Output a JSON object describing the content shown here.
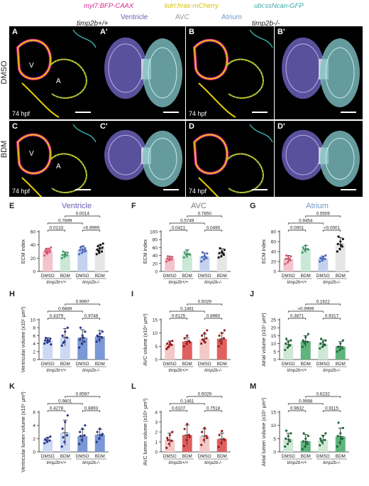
{
  "header": {
    "markers": [
      {
        "text": "myl7:BFP-CAAX",
        "color": "#d6278f"
      },
      {
        "text": "kdrl:hras-mCherry",
        "color": "#d8c000"
      },
      {
        "text": "ubi:ssNcan-GFP",
        "color": "#3aa6a6"
      }
    ],
    "regions": [
      {
        "text": "Ventricle",
        "color": "#6c5fb5"
      },
      {
        "text": "AVC",
        "color": "#9a9a9a"
      },
      {
        "text": "Atrium",
        "color": "#6f9bc9"
      }
    ],
    "genotypes": [
      "timp2b+/+",
      "timp2b-/-"
    ],
    "row_labels": [
      "DMSO",
      "BDM"
    ]
  },
  "image_panels": [
    {
      "letter": "A",
      "type": "confocal",
      "stage": "74 hpf",
      "labels": [
        "V",
        "A"
      ]
    },
    {
      "letter": "A'",
      "type": "render"
    },
    {
      "letter": "B",
      "type": "confocal",
      "stage": "74 hpf",
      "labels": []
    },
    {
      "letter": "B'",
      "type": "render"
    },
    {
      "letter": "C",
      "type": "confocal",
      "stage": "74 hpf",
      "labels": [
        "V",
        "A"
      ]
    },
    {
      "letter": "C'",
      "type": "render"
    },
    {
      "letter": "D",
      "type": "confocal",
      "stage": "74 hpf",
      "labels": []
    },
    {
      "letter": "D'",
      "type": "render"
    }
  ],
  "chart_data": [
    {
      "letter": "E",
      "type": "scatter-bar",
      "title": "Ventricle",
      "title_color": "#6c5fb5",
      "ylabel": "ECM index",
      "ylim": [
        0,
        60
      ],
      "yticks": [
        0,
        20,
        40,
        60
      ],
      "categories": [
        "DMSO",
        "BDM",
        "DMSO",
        "BDM"
      ],
      "groups": [
        "timp2b+/+",
        "timp2b-/-"
      ],
      "bar_colors": [
        "#f3c4ce",
        "#c9e8d6",
        "#c4d2ee",
        "#e6e6e6"
      ],
      "dot_colors": [
        "#e05a78",
        "#3fa36a",
        "#4b6bc4",
        "#111111"
      ],
      "means": [
        30,
        25,
        33,
        34
      ],
      "sd": [
        5,
        4,
        5,
        6
      ],
      "points": [
        [
          24,
          27,
          29,
          30,
          31,
          32,
          33,
          34,
          36,
          28
        ],
        [
          20,
          22,
          24,
          25,
          27,
          28,
          30
        ],
        [
          26,
          28,
          30,
          32,
          33,
          35,
          36,
          38,
          31
        ],
        [
          26,
          28,
          30,
          33,
          35,
          36,
          38,
          40,
          42,
          31
        ]
      ],
      "brackets": [
        {
          "from": 0,
          "to": 1,
          "p": "0.0133"
        },
        {
          "from": 2,
          "to": 3,
          "p": ">0.9999"
        },
        {
          "from": 0,
          "to": 2,
          "p": "0.7899"
        },
        {
          "from": 1,
          "to": 3,
          "p": "0.0014"
        }
      ]
    },
    {
      "letter": "F",
      "type": "scatter-bar",
      "title": "AVC",
      "title_color": "#7a7a7a",
      "ylabel": "ECM index",
      "ylim": [
        0,
        100
      ],
      "yticks": [
        0,
        20,
        40,
        60,
        80,
        100
      ],
      "categories": [
        "DMSO",
        "BDM",
        "DMSO",
        "BDM"
      ],
      "groups": [
        "timp2b+/+",
        "timp2b-/-"
      ],
      "bar_colors": [
        "#f3c4ce",
        "#c9e8d6",
        "#c4d2ee",
        "#e6e6e6"
      ],
      "dot_colors": [
        "#e05a78",
        "#3fa36a",
        "#4b6bc4",
        "#111111"
      ],
      "means": [
        32,
        44,
        37,
        47
      ],
      "sd": [
        6,
        10,
        9,
        10
      ],
      "points": [
        [
          25,
          28,
          30,
          32,
          34,
          36,
          38,
          30
        ],
        [
          35,
          40,
          44,
          48,
          52,
          42
        ],
        [
          25,
          30,
          33,
          36,
          40,
          45,
          48,
          36
        ],
        [
          35,
          38,
          42,
          46,
          50,
          54,
          58,
          46
        ]
      ],
      "brackets": [
        {
          "from": 0,
          "to": 1,
          "p": "0.0421"
        },
        {
          "from": 2,
          "to": 3,
          "p": "0.0490"
        },
        {
          "from": 0,
          "to": 2,
          "p": "0.5749"
        },
        {
          "from": 1,
          "to": 3,
          "p": "0.7850"
        }
      ]
    },
    {
      "letter": "G",
      "type": "scatter-bar",
      "title": "Atrium",
      "title_color": "#6f9bc9",
      "ylabel": "ECM index",
      "ylim": [
        0,
        80
      ],
      "yticks": [
        0,
        20,
        40,
        60,
        80
      ],
      "categories": [
        "DMSO",
        "BDM",
        "DMSO",
        "BDM"
      ],
      "groups": [
        "timp2b+/+",
        "timp2b-/-"
      ],
      "bar_colors": [
        "#f3c4ce",
        "#c9e8d6",
        "#c4d2ee",
        "#e6e6e6"
      ],
      "dot_colors": [
        "#e05a78",
        "#3fa36a",
        "#4b6bc4",
        "#111111"
      ],
      "means": [
        25,
        45,
        26,
        55
      ],
      "sd": [
        7,
        7,
        5,
        13
      ],
      "points": [
        [
          15,
          18,
          22,
          25,
          28,
          30,
          32,
          26
        ],
        [
          38,
          42,
          45,
          48,
          52,
          44
        ],
        [
          20,
          22,
          25,
          27,
          29,
          32,
          26
        ],
        [
          40,
          45,
          50,
          55,
          60,
          65,
          70,
          52
        ]
      ],
      "brackets": [
        {
          "from": 0,
          "to": 1,
          "p": "0.0001"
        },
        {
          "from": 2,
          "to": 3,
          "p": "<0.0001"
        },
        {
          "from": 0,
          "to": 2,
          "p": "0.9454"
        },
        {
          "from": 1,
          "to": 3,
          "p": "0.5509"
        }
      ]
    },
    {
      "letter": "H",
      "type": "scatter-bar",
      "ylabel": "Ventricular volume (x10⁵ µm³)",
      "ylim": [
        0,
        10
      ],
      "yticks": [
        0,
        2,
        4,
        6,
        8,
        10
      ],
      "categories": [
        "DMSO",
        "BDM",
        "DMSO",
        "BDM"
      ],
      "groups": [
        "timp2b+/+",
        "timp2b-/-"
      ],
      "bar_colors": [
        "#ccd8f4",
        "#ccd8f4",
        "#7b98d6",
        "#7b98d6"
      ],
      "dot_colors": [
        "#27348b",
        "#27348b",
        "#27348b",
        "#27348b"
      ],
      "means": [
        4.7,
        5.6,
        5.5,
        5.8
      ],
      "sd": [
        0.8,
        2.2,
        2.0,
        1.5
      ],
      "points": [
        [
          4,
          4.3,
          4.6,
          4.8,
          5,
          5.2,
          5.4,
          4.5,
          3.8
        ],
        [
          3.5,
          4.5,
          5.5,
          6,
          7,
          8,
          4.2
        ],
        [
          3,
          4,
          4.5,
          5,
          6,
          7,
          8,
          5.5
        ],
        [
          4.5,
          5,
          5.5,
          6,
          6.5,
          7,
          5.8
        ]
      ],
      "brackets": [
        {
          "from": 0,
          "to": 1,
          "p": "0.4379"
        },
        {
          "from": 2,
          "to": 3,
          "p": "0.9748"
        },
        {
          "from": 0,
          "to": 2,
          "p": "0.6889"
        },
        {
          "from": 1,
          "to": 3,
          "p": "0.9997"
        }
      ]
    },
    {
      "letter": "I",
      "type": "scatter-bar",
      "ylabel": "AVC volume (x10⁴ µm³)",
      "ylim": [
        0,
        15
      ],
      "yticks": [
        0,
        5,
        10,
        15
      ],
      "categories": [
        "DMSO",
        "BDM",
        "DMSO",
        "BDM"
      ],
      "groups": [
        "timp2b+/+",
        "timp2b-/-"
      ],
      "bar_colors": [
        "#f5c8c8",
        "#e06060",
        "#f5c8c8",
        "#e06060"
      ],
      "dot_colors": [
        "#9b1b1b",
        "#9b1b1b",
        "#9b1b1b",
        "#9b1b1b"
      ],
      "means": [
        5.8,
        6.8,
        7.8,
        7.8
      ],
      "sd": [
        1.2,
        1.5,
        1.8,
        2.2
      ],
      "points": [
        [
          4,
          5,
          5.5,
          6,
          6.5,
          7,
          4.5,
          5.8
        ],
        [
          5,
          6,
          7,
          8,
          9,
          6.5
        ],
        [
          6,
          7,
          8,
          9,
          10,
          11,
          7.5,
          6.5
        ],
        [
          5,
          6,
          8,
          9,
          10,
          11,
          7
        ]
      ],
      "brackets": [
        {
          "from": 0,
          "to": 1,
          "p": "0.6125"
        },
        {
          "from": 2,
          "to": 3,
          "p": "0.8960"
        },
        {
          "from": 0,
          "to": 2,
          "p": "0.1461"
        },
        {
          "from": 1,
          "to": 3,
          "p": "0.5029"
        }
      ]
    },
    {
      "letter": "J",
      "type": "scatter-bar",
      "ylabel": "Atrial volume (x10⁵ µm³)",
      "ylim": [
        0,
        25
      ],
      "yticks": [
        0,
        5,
        10,
        15,
        20,
        25
      ],
      "categories": [
        "DMSO",
        "BDM",
        "DMSO",
        "BDM"
      ],
      "groups": [
        "timp2b+/+",
        "timp2b-/-"
      ],
      "bar_colors": [
        "#cfe8d6",
        "#5fb57d",
        "#cfe8d6",
        "#5fb57d"
      ],
      "dot_colors": [
        "#1e6b3a",
        "#1e6b3a",
        "#1e6b3a",
        "#1e6b3a"
      ],
      "means": [
        9.5,
        11.5,
        9.8,
        8.2
      ],
      "sd": [
        2.5,
        3.5,
        2.5,
        3
      ],
      "points": [
        [
          6,
          7.5,
          9,
          10,
          11,
          12,
          13,
          8.5
        ],
        [
          8,
          10,
          11,
          12,
          14,
          16,
          11
        ],
        [
          7,
          8,
          9,
          10,
          11,
          12,
          13,
          9
        ],
        [
          5,
          6,
          7,
          8,
          10,
          12,
          8
        ]
      ],
      "brackets": [
        {
          "from": 0,
          "to": 1,
          "p": "0.3871"
        },
        {
          "from": 2,
          "to": 3,
          "p": "0.9317"
        },
        {
          "from": 0,
          "to": 2,
          "p": ">0.9999"
        },
        {
          "from": 1,
          "to": 3,
          "p": "0.1622"
        }
      ]
    },
    {
      "letter": "K",
      "type": "scatter-bar",
      "ylabel": "Ventricular lumen volume (x10⁵ µm³)",
      "ylim": [
        0,
        6
      ],
      "yticks": [
        0,
        2,
        4,
        6
      ],
      "categories": [
        "DMSO",
        "BDM",
        "DMSO",
        "BDM"
      ],
      "groups": [
        "timp2b+/+",
        "timp2b-/-"
      ],
      "bar_colors": [
        "#ccd8f4",
        "#ccd8f4",
        "#7b98d6",
        "#7b98d6"
      ],
      "dot_colors": [
        "#27348b",
        "#27348b",
        "#27348b",
        "#27348b"
      ],
      "means": [
        1.8,
        2.9,
        2.4,
        2.6
      ],
      "sd": [
        0.4,
        1.9,
        1.0,
        0.8
      ],
      "points": [
        [
          1.3,
          1.5,
          1.7,
          1.9,
          2.1,
          2.3,
          1.8
        ],
        [
          0.8,
          1.5,
          2.5,
          3.5,
          4.5,
          5.5,
          2.2
        ],
        [
          1.2,
          1.8,
          2.5,
          3,
          3.5,
          4,
          2.4
        ],
        [
          1.5,
          2,
          2.5,
          3,
          3.5,
          2.7
        ]
      ],
      "brackets": [
        {
          "from": 0,
          "to": 1,
          "p": "0.4278"
        },
        {
          "from": 2,
          "to": 3,
          "p": "0.8893"
        },
        {
          "from": 0,
          "to": 2,
          "p": "0.9801"
        },
        {
          "from": 1,
          "to": 3,
          "p": "0.9597"
        }
      ]
    },
    {
      "letter": "L",
      "type": "scatter-bar",
      "ylabel": "AVC lumen volume (x10⁴ µm³)",
      "ylim": [
        0,
        4
      ],
      "yticks": [
        0,
        1,
        2,
        3,
        4
      ],
      "categories": [
        "DMSO",
        "BDM",
        "DMSO",
        "BDM"
      ],
      "groups": [
        "timp2b+/+",
        "timp2b-/-"
      ],
      "bar_colors": [
        "#f5c8c8",
        "#e06060",
        "#f5c8c8",
        "#e06060"
      ],
      "dot_colors": [
        "#9b1b1b",
        "#9b1b1b",
        "#9b1b1b",
        "#9b1b1b"
      ],
      "means": [
        1.2,
        1.7,
        1.6,
        1.3
      ],
      "sd": [
        0.7,
        1.0,
        0.7,
        0.6
      ],
      "points": [
        [
          0.4,
          0.8,
          1.1,
          1.4,
          1.7,
          2.0,
          1.2
        ],
        [
          0.6,
          1.2,
          1.7,
          2.3,
          2.8,
          1.5
        ],
        [
          0.7,
          1.2,
          1.6,
          2.0,
          2.4,
          1.4
        ],
        [
          0.5,
          0.9,
          1.3,
          1.7,
          2.1,
          1.2
        ]
      ],
      "brackets": [
        {
          "from": 0,
          "to": 1,
          "p": "0.6107"
        },
        {
          "from": 2,
          "to": 3,
          "p": "0.7518"
        },
        {
          "from": 0,
          "to": 2,
          "p": "0.1461"
        },
        {
          "from": 1,
          "to": 3,
          "p": "0.5029"
        }
      ]
    },
    {
      "letter": "M",
      "type": "scatter-bar",
      "ylabel": "Atrial lumen volume (x10⁵ µm³)",
      "ylim": [
        0,
        15
      ],
      "yticks": [
        0,
        5,
        10,
        15
      ],
      "categories": [
        "DMSO",
        "BDM",
        "DMSO",
        "BDM"
      ],
      "groups": [
        "timp2b+/+",
        "timp2b-/-"
      ],
      "bar_colors": [
        "#cfe8d6",
        "#5fb57d",
        "#cfe8d6",
        "#5fb57d"
      ],
      "dot_colors": [
        "#1e6b3a",
        "#1e6b3a",
        "#1e6b3a",
        "#1e6b3a"
      ],
      "means": [
        4.8,
        4.0,
        4.5,
        5.8
      ],
      "sd": [
        2.2,
        2.5,
        1.8,
        3.2
      ],
      "points": [
        [
          2,
          3,
          4,
          5,
          6,
          7,
          8,
          4.5
        ],
        [
          1,
          2,
          3,
          4,
          5,
          6,
          7,
          3.5
        ],
        [
          2.5,
          3.5,
          4.5,
          5,
          6,
          7,
          4.2
        ],
        [
          2,
          3.5,
          5,
          6,
          7,
          9,
          11,
          5
        ]
      ],
      "brackets": [
        {
          "from": 0,
          "to": 1,
          "p": "0.9632"
        },
        {
          "from": 2,
          "to": 3,
          "p": "0.9115"
        },
        {
          "from": 0,
          "to": 2,
          "p": "0.9988"
        },
        {
          "from": 1,
          "to": 3,
          "p": "0.6232"
        }
      ]
    }
  ]
}
